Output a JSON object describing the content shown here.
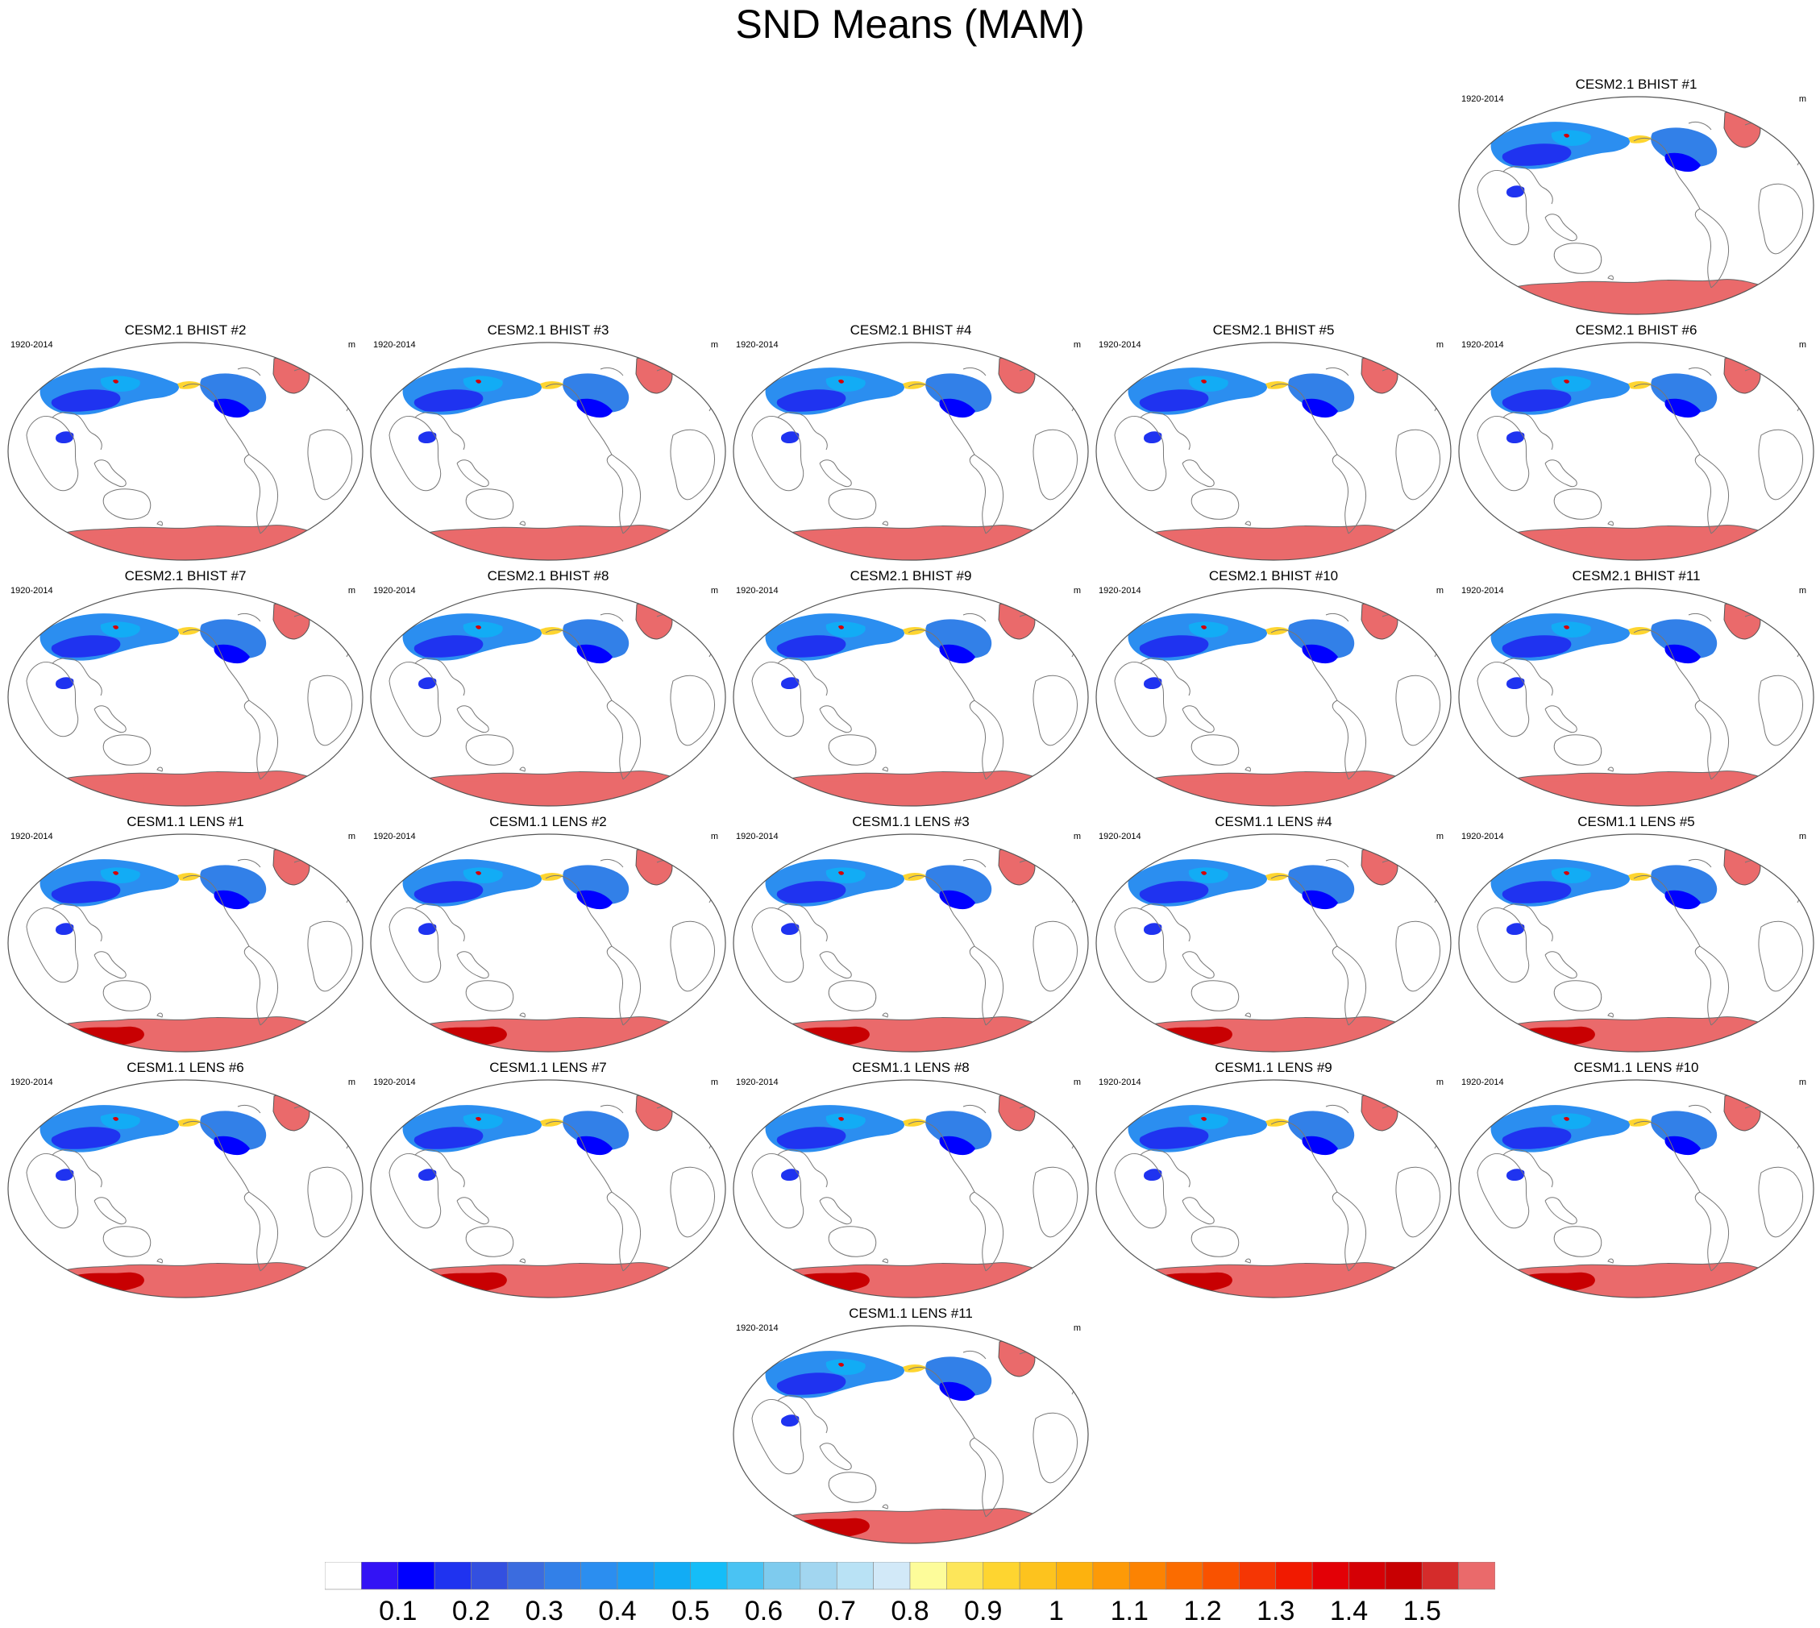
{
  "figure": {
    "title": "SND Means (MAM)"
  },
  "panels": [
    {
      "title": "CESM2.1 BHIST #1",
      "left_text": "1920-2014",
      "right_text": "m",
      "scheme": "bhist"
    },
    {
      "title": "CESM2.1 BHIST #2",
      "left_text": "1920-2014",
      "right_text": "m",
      "scheme": "bhist"
    },
    {
      "title": "CESM2.1 BHIST #3",
      "left_text": "1920-2014",
      "right_text": "m",
      "scheme": "bhist"
    },
    {
      "title": "CESM2.1 BHIST #4",
      "left_text": "1920-2014",
      "right_text": "m",
      "scheme": "bhist"
    },
    {
      "title": "CESM2.1 BHIST #5",
      "left_text": "1920-2014",
      "right_text": "m",
      "scheme": "bhist"
    },
    {
      "title": "CESM2.1 BHIST #6",
      "left_text": "1920-2014",
      "right_text": "m",
      "scheme": "bhist"
    },
    {
      "title": "CESM2.1 BHIST #7",
      "left_text": "1920-2014",
      "right_text": "m",
      "scheme": "bhist"
    },
    {
      "title": "CESM2.1 BHIST #8",
      "left_text": "1920-2014",
      "right_text": "m",
      "scheme": "bhist"
    },
    {
      "title": "CESM2.1 BHIST #9",
      "left_text": "1920-2014",
      "right_text": "m",
      "scheme": "bhist"
    },
    {
      "title": "CESM2.1 BHIST #10",
      "left_text": "1920-2014",
      "right_text": "m",
      "scheme": "bhist"
    },
    {
      "title": "CESM2.1 BHIST #11",
      "left_text": "1920-2014",
      "right_text": "m",
      "scheme": "bhist"
    },
    {
      "title": "CESM1.1 LENS #1",
      "left_text": "1920-2014",
      "right_text": "m",
      "scheme": "lens"
    },
    {
      "title": "CESM1.1 LENS #2",
      "left_text": "1920-2014",
      "right_text": "m",
      "scheme": "lens"
    },
    {
      "title": "CESM1.1 LENS #3",
      "left_text": "1920-2014",
      "right_text": "m",
      "scheme": "lens"
    },
    {
      "title": "CESM1.1 LENS #4",
      "left_text": "1920-2014",
      "right_text": "m",
      "scheme": "lens"
    },
    {
      "title": "CESM1.1 LENS #5",
      "left_text": "1920-2014",
      "right_text": "m",
      "scheme": "lens"
    },
    {
      "title": "CESM1.1 LENS #6",
      "left_text": "1920-2014",
      "right_text": "m",
      "scheme": "lens"
    },
    {
      "title": "CESM1.1 LENS #7",
      "left_text": "1920-2014",
      "right_text": "m",
      "scheme": "lens"
    },
    {
      "title": "CESM1.1 LENS #8",
      "left_text": "1920-2014",
      "right_text": "m",
      "scheme": "lens"
    },
    {
      "title": "CESM1.1 LENS #9",
      "left_text": "1920-2014",
      "right_text": "m",
      "scheme": "lens"
    },
    {
      "title": "CESM1.1 LENS #10",
      "left_text": "1920-2014",
      "right_text": "m",
      "scheme": "lens"
    },
    {
      "title": "CESM1.1 LENS #11",
      "left_text": "1920-2014",
      "right_text": "m",
      "scheme": "lens"
    }
  ],
  "colorbar": {
    "colors": [
      "#ffffff",
      "#3313f5",
      "#0000ff",
      "#1f33f0",
      "#3350e0",
      "#3b6cdf",
      "#3280e8",
      "#2b8ef0",
      "#1b9cf5",
      "#12acf5",
      "#15bdf8",
      "#4ac3f3",
      "#7ecbee",
      "#a2d6f0",
      "#b9e2f5",
      "#d2e9f8",
      "#fdfc9a",
      "#fde65a",
      "#fed530",
      "#fdc31e",
      "#fdb20e",
      "#fd9a07",
      "#fc8302",
      "#fb6c00",
      "#f95200",
      "#f53604",
      "#f11a00",
      "#e30006",
      "#d50005",
      "#c80002",
      "#d52c2b",
      "#ea6a6b"
    ],
    "labels": [
      "0.1",
      "0.2",
      "0.3",
      "0.4",
      "0.5",
      "0.6",
      "0.7",
      "0.8",
      "0.9",
      "1",
      "1.1",
      "1.2",
      "1.3",
      "1.4",
      "1.5"
    ]
  }
}
